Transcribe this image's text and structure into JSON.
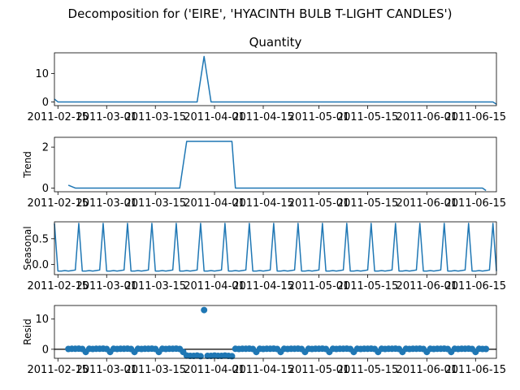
{
  "figure": {
    "suptitle": "Decomposition for ('EIRE', 'HYACINTH BULB T-LIGHT CANDLES')"
  },
  "chart_data": [
    {
      "type": "line",
      "panel": "observed",
      "title": "Quantity",
      "ylabel": "",
      "ylim": [
        -1.3,
        17.3
      ],
      "yticks": [
        0,
        10
      ],
      "x_start": "2011-02-14",
      "x_end": "2011-06-21",
      "xticks": [
        "2011-02-15",
        "2011-03-01",
        "2011-03-15",
        "2011-04-01",
        "2011-04-15",
        "2011-05-01",
        "2011-05-15",
        "2011-06-01",
        "2011-06-15"
      ],
      "points": [
        {
          "x": "2011-02-14",
          "y": 1
        },
        {
          "x": "2011-02-15",
          "y": 0
        },
        {
          "x": "2011-03-27",
          "y": 0
        },
        {
          "x": "2011-03-29",
          "y": 16
        },
        {
          "x": "2011-03-31",
          "y": 0
        },
        {
          "x": "2011-06-20",
          "y": 0
        },
        {
          "x": "2011-06-21",
          "y": -0.8
        }
      ]
    },
    {
      "type": "line",
      "panel": "trend",
      "title": "",
      "ylabel": "Trend",
      "ylim": [
        -0.18,
        2.48
      ],
      "yticks": [
        0,
        2
      ],
      "x_start": "2011-02-14",
      "x_end": "2011-06-21",
      "xticks": [
        "2011-02-15",
        "2011-03-01",
        "2011-03-15",
        "2011-04-01",
        "2011-04-15",
        "2011-05-01",
        "2011-05-15",
        "2011-06-01",
        "2011-06-15"
      ],
      "points": [
        {
          "x": "2011-02-18",
          "y": 0.14
        },
        {
          "x": "2011-02-20",
          "y": 0
        },
        {
          "x": "2011-03-22",
          "y": 0
        },
        {
          "x": "2011-03-24",
          "y": 2.28
        },
        {
          "x": "2011-04-06",
          "y": 2.28
        },
        {
          "x": "2011-04-07",
          "y": 0
        },
        {
          "x": "2011-06-17",
          "y": 0
        },
        {
          "x": "2011-06-18",
          "y": -0.12
        }
      ]
    },
    {
      "type": "line",
      "panel": "seasonal",
      "title": "",
      "ylabel": "Seasonal",
      "ylim": [
        -0.2,
        0.83
      ],
      "yticks": [
        0.0,
        0.5
      ],
      "x_start": "2011-02-14",
      "x_end": "2011-06-21",
      "xticks": [
        "2011-02-15",
        "2011-03-01",
        "2011-03-15",
        "2011-04-01",
        "2011-04-15",
        "2011-05-01",
        "2011-05-15",
        "2011-06-01",
        "2011-06-15"
      ],
      "period_days": 7,
      "pattern": [
        0.8,
        -0.13,
        -0.13,
        -0.12,
        -0.13,
        -0.12,
        -0.11
      ],
      "pattern_start": "2011-02-14"
    },
    {
      "type": "scatter",
      "panel": "resid",
      "title": "",
      "ylabel": "Resid",
      "ylim": [
        -3.0,
        14.5
      ],
      "yticks": [
        0,
        10
      ],
      "zero_line": true,
      "x_start": "2011-02-14",
      "x_end": "2011-06-21",
      "xticks": [
        "2011-02-15",
        "2011-03-01",
        "2011-03-15",
        "2011-04-01",
        "2011-04-15",
        "2011-05-01",
        "2011-05-15",
        "2011-06-01",
        "2011-06-15"
      ],
      "points": [
        {
          "x": "2011-02-18",
          "y": 0.1
        },
        {
          "x": "2011-02-19",
          "y": 0.15
        },
        {
          "x": "2011-02-20",
          "y": 0.15
        },
        {
          "x": "2011-02-21",
          "y": 0.2
        },
        {
          "x": "2011-02-22",
          "y": 0.1
        },
        {
          "x": "2011-02-23",
          "y": -0.9
        },
        {
          "x": "2011-02-24",
          "y": 0.15
        },
        {
          "x": "2011-02-25",
          "y": 0.1
        },
        {
          "x": "2011-02-26",
          "y": 0.15
        },
        {
          "x": "2011-02-27",
          "y": 0.15
        },
        {
          "x": "2011-02-28",
          "y": 0.2
        },
        {
          "x": "2011-03-01",
          "y": 0.1
        },
        {
          "x": "2011-03-02",
          "y": -0.9
        },
        {
          "x": "2011-03-03",
          "y": 0.15
        },
        {
          "x": "2011-03-04",
          "y": 0.1
        },
        {
          "x": "2011-03-05",
          "y": 0.15
        },
        {
          "x": "2011-03-06",
          "y": 0.15
        },
        {
          "x": "2011-03-07",
          "y": 0.2
        },
        {
          "x": "2011-03-08",
          "y": 0.1
        },
        {
          "x": "2011-03-09",
          "y": -0.9
        },
        {
          "x": "2011-03-10",
          "y": 0.15
        },
        {
          "x": "2011-03-11",
          "y": 0.1
        },
        {
          "x": "2011-03-12",
          "y": 0.15
        },
        {
          "x": "2011-03-13",
          "y": 0.15
        },
        {
          "x": "2011-03-14",
          "y": 0.2
        },
        {
          "x": "2011-03-15",
          "y": 0.1
        },
        {
          "x": "2011-03-16",
          "y": -0.9
        },
        {
          "x": "2011-03-17",
          "y": 0.15
        },
        {
          "x": "2011-03-18",
          "y": 0.1
        },
        {
          "x": "2011-03-19",
          "y": 0.15
        },
        {
          "x": "2011-03-20",
          "y": 0.15
        },
        {
          "x": "2011-03-21",
          "y": 0.2
        },
        {
          "x": "2011-03-22",
          "y": 0.1
        },
        {
          "x": "2011-03-23",
          "y": -0.9
        },
        {
          "x": "2011-03-24",
          "y": -2.1
        },
        {
          "x": "2011-03-25",
          "y": -2.2
        },
        {
          "x": "2011-03-26",
          "y": -2.2
        },
        {
          "x": "2011-03-27",
          "y": -2.1
        },
        {
          "x": "2011-03-28",
          "y": -2.3
        },
        {
          "x": "2011-03-29",
          "y": 13
        },
        {
          "x": "2011-03-30",
          "y": -2.2
        },
        {
          "x": "2011-03-31",
          "y": -2.2
        },
        {
          "x": "2011-04-01",
          "y": -2.1
        },
        {
          "x": "2011-04-02",
          "y": -2.2
        },
        {
          "x": "2011-04-03",
          "y": -2.2
        },
        {
          "x": "2011-04-04",
          "y": -2.1
        },
        {
          "x": "2011-04-05",
          "y": -2.2
        },
        {
          "x": "2011-04-06",
          "y": -2.3
        },
        {
          "x": "2011-04-07",
          "y": 0.15
        },
        {
          "x": "2011-04-08",
          "y": 0.1
        },
        {
          "x": "2011-04-09",
          "y": 0.15
        },
        {
          "x": "2011-04-10",
          "y": 0.15
        },
        {
          "x": "2011-04-11",
          "y": 0.2
        },
        {
          "x": "2011-04-12",
          "y": 0.1
        },
        {
          "x": "2011-04-13",
          "y": -0.9
        },
        {
          "x": "2011-04-14",
          "y": 0.15
        },
        {
          "x": "2011-04-15",
          "y": 0.1
        },
        {
          "x": "2011-04-16",
          "y": 0.15
        },
        {
          "x": "2011-04-17",
          "y": 0.15
        },
        {
          "x": "2011-04-18",
          "y": 0.2
        },
        {
          "x": "2011-04-19",
          "y": 0.1
        },
        {
          "x": "2011-04-20",
          "y": -0.9
        },
        {
          "x": "2011-04-21",
          "y": 0.15
        },
        {
          "x": "2011-04-22",
          "y": 0.1
        },
        {
          "x": "2011-04-23",
          "y": 0.15
        },
        {
          "x": "2011-04-24",
          "y": 0.15
        },
        {
          "x": "2011-04-25",
          "y": 0.2
        },
        {
          "x": "2011-04-26",
          "y": 0.1
        },
        {
          "x": "2011-04-27",
          "y": -0.9
        },
        {
          "x": "2011-04-28",
          "y": 0.15
        },
        {
          "x": "2011-04-29",
          "y": 0.1
        },
        {
          "x": "2011-04-30",
          "y": 0.15
        },
        {
          "x": "2011-05-01",
          "y": 0.15
        },
        {
          "x": "2011-05-02",
          "y": 0.2
        },
        {
          "x": "2011-05-03",
          "y": 0.1
        },
        {
          "x": "2011-05-04",
          "y": -0.9
        },
        {
          "x": "2011-05-05",
          "y": 0.15
        },
        {
          "x": "2011-05-06",
          "y": 0.1
        },
        {
          "x": "2011-05-07",
          "y": 0.15
        },
        {
          "x": "2011-05-08",
          "y": 0.15
        },
        {
          "x": "2011-05-09",
          "y": 0.2
        },
        {
          "x": "2011-05-10",
          "y": 0.1
        },
        {
          "x": "2011-05-11",
          "y": -0.9
        },
        {
          "x": "2011-05-12",
          "y": 0.15
        },
        {
          "x": "2011-05-13",
          "y": 0.1
        },
        {
          "x": "2011-05-14",
          "y": 0.15
        },
        {
          "x": "2011-05-15",
          "y": 0.15
        },
        {
          "x": "2011-05-16",
          "y": 0.2
        },
        {
          "x": "2011-05-17",
          "y": 0.1
        },
        {
          "x": "2011-05-18",
          "y": -0.9
        },
        {
          "x": "2011-05-19",
          "y": 0.15
        },
        {
          "x": "2011-05-20",
          "y": 0.1
        },
        {
          "x": "2011-05-21",
          "y": 0.15
        },
        {
          "x": "2011-05-22",
          "y": 0.15
        },
        {
          "x": "2011-05-23",
          "y": 0.2
        },
        {
          "x": "2011-05-24",
          "y": 0.1
        },
        {
          "x": "2011-05-25",
          "y": -0.9
        },
        {
          "x": "2011-05-26",
          "y": 0.15
        },
        {
          "x": "2011-05-27",
          "y": 0.1
        },
        {
          "x": "2011-05-28",
          "y": 0.15
        },
        {
          "x": "2011-05-29",
          "y": 0.15
        },
        {
          "x": "2011-05-30",
          "y": 0.2
        },
        {
          "x": "2011-05-31",
          "y": 0.1
        },
        {
          "x": "2011-06-01",
          "y": -0.9
        },
        {
          "x": "2011-06-02",
          "y": 0.15
        },
        {
          "x": "2011-06-03",
          "y": 0.1
        },
        {
          "x": "2011-06-04",
          "y": 0.15
        },
        {
          "x": "2011-06-05",
          "y": 0.15
        },
        {
          "x": "2011-06-06",
          "y": 0.2
        },
        {
          "x": "2011-06-07",
          "y": 0.1
        },
        {
          "x": "2011-06-08",
          "y": -0.9
        },
        {
          "x": "2011-06-09",
          "y": 0.15
        },
        {
          "x": "2011-06-10",
          "y": 0.1
        },
        {
          "x": "2011-06-11",
          "y": 0.15
        },
        {
          "x": "2011-06-12",
          "y": 0.15
        },
        {
          "x": "2011-06-13",
          "y": 0.2
        },
        {
          "x": "2011-06-14",
          "y": 0.1
        },
        {
          "x": "2011-06-15",
          "y": -0.9
        },
        {
          "x": "2011-06-16",
          "y": 0.15
        },
        {
          "x": "2011-06-17",
          "y": 0.1
        },
        {
          "x": "2011-06-18",
          "y": 0.1
        }
      ]
    }
  ],
  "colors": {
    "series": "#1f77b4",
    "axis": "#000000",
    "background": "#ffffff"
  }
}
